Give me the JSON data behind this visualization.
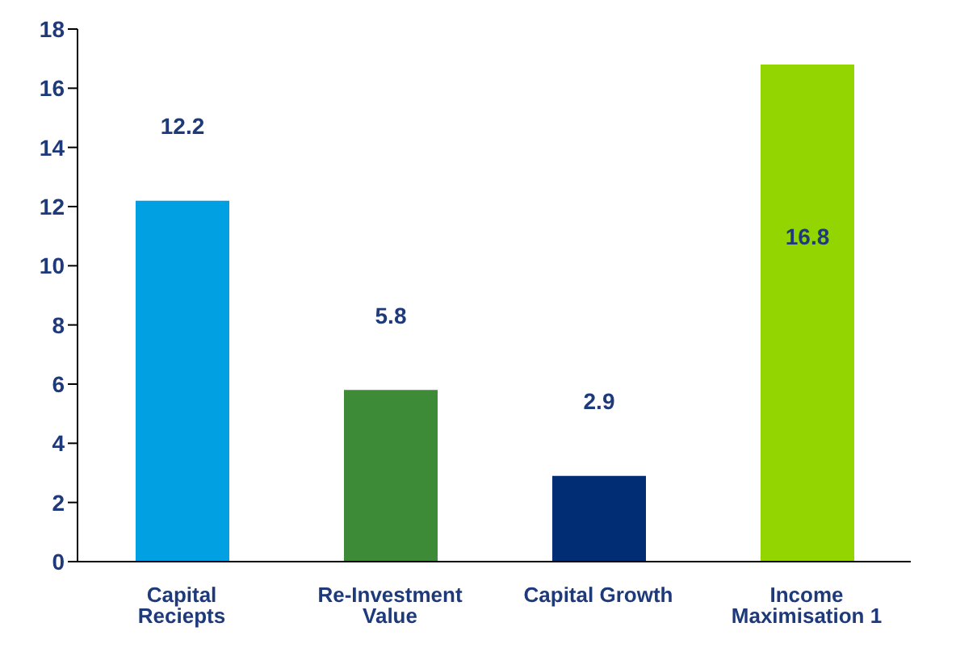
{
  "chart_data": {
    "type": "bar",
    "categories": [
      "Capital Reciepts",
      "Re-Investment Value",
      "Capital Growth",
      "Income Maximisation 1"
    ],
    "values": [
      12.2,
      5.8,
      2.9,
      16.8
    ],
    "colors": [
      "#00a0e2",
      "#3d8b37",
      "#002d74",
      "#93d500"
    ],
    "ylim": [
      0,
      18
    ],
    "yticks": [
      0,
      2,
      4,
      6,
      8,
      10,
      12,
      14,
      16,
      18
    ],
    "grid": false,
    "legend": false,
    "data_labels": true
  }
}
